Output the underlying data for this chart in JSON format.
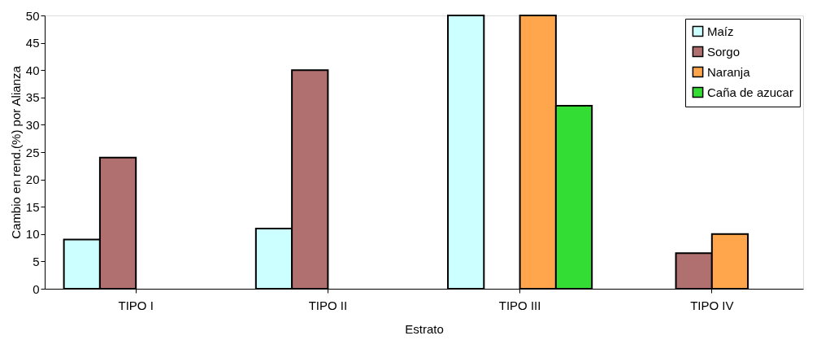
{
  "chart_data": {
    "type": "bar",
    "xlabel": "Estrato",
    "ylabel": "Cambio en rend.(%) por Alianza",
    "categories": [
      "TIPO I",
      "TIPO II",
      "TIPO III",
      "TIPO IV"
    ],
    "series": [
      {
        "name": "Maíz",
        "color": "#ccffff",
        "values": [
          9,
          11,
          50,
          null
        ]
      },
      {
        "name": "Sorgo",
        "color": "#b07070",
        "values": [
          24,
          40,
          null,
          6.5
        ]
      },
      {
        "name": "Naranja",
        "color": "#ffa64d",
        "values": [
          null,
          null,
          50,
          10
        ]
      },
      {
        "name": "Caña de azucar",
        "color": "#33dd33",
        "values": [
          null,
          null,
          33.5,
          null
        ]
      }
    ],
    "ylim": [
      0,
      50
    ],
    "yticks": [
      0,
      5,
      10,
      15,
      20,
      25,
      30,
      35,
      40,
      45,
      50
    ],
    "grid": false,
    "legend": "top right"
  }
}
